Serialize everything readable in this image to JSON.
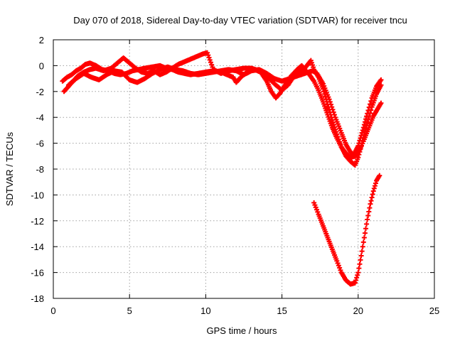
{
  "chart_data": {
    "type": "scatter",
    "title": "Day 070 of 2018, Sidereal Day-to-day VTEC variation (SDTVAR) for receiver tncu",
    "xlabel": "GPS time / hours",
    "ylabel": "SDTVAR / TECUs",
    "xlim": [
      0,
      25
    ],
    "ylim": [
      -18,
      2
    ],
    "xticks": [
      0,
      5,
      10,
      15,
      20,
      25
    ],
    "yticks": [
      2,
      0,
      -2,
      -4,
      -6,
      -8,
      -10,
      -12,
      -14,
      -16,
      -18
    ],
    "grid": true,
    "marker": "+",
    "color": "#ff0000",
    "series": [
      {
        "name": "track-1",
        "points": [
          [
            0.6,
            -1.2
          ],
          [
            0.9,
            -0.9
          ],
          [
            1.2,
            -0.7
          ],
          [
            1.5,
            -0.4
          ],
          [
            1.8,
            -0.2
          ],
          [
            2.1,
            0.1
          ],
          [
            2.4,
            0.2
          ],
          [
            2.8,
            0.0
          ],
          [
            3.2,
            -0.3
          ],
          [
            3.6,
            -0.4
          ],
          [
            4.0,
            -0.6
          ],
          [
            4.4,
            -0.7
          ],
          [
            4.8,
            -0.6
          ],
          [
            5.2,
            -0.4
          ],
          [
            5.6,
            -0.3
          ],
          [
            6.0,
            -0.2
          ],
          [
            6.5,
            -0.1
          ],
          [
            7.0,
            0.0
          ],
          [
            7.4,
            -0.2
          ],
          [
            7.8,
            -0.3
          ],
          [
            8.2,
            -0.5
          ],
          [
            8.6,
            -0.6
          ],
          [
            9.0,
            -0.7
          ],
          [
            9.5,
            -0.6
          ],
          [
            10.0,
            -0.5
          ],
          [
            10.5,
            -0.4
          ],
          [
            11.0,
            -0.5
          ],
          [
            11.4,
            -0.7
          ],
          [
            11.8,
            -0.9
          ],
          [
            12.0,
            -1.3
          ],
          [
            12.3,
            -0.9
          ],
          [
            12.6,
            -0.6
          ],
          [
            12.9,
            -0.4
          ],
          [
            13.2,
            -0.3
          ],
          [
            13.6,
            -0.5
          ],
          [
            14.0,
            -1.2
          ],
          [
            14.3,
            -2.0
          ],
          [
            14.6,
            -2.5
          ],
          [
            14.9,
            -2.1
          ],
          [
            15.2,
            -1.5
          ],
          [
            15.6,
            -0.8
          ],
          [
            16.0,
            -0.3
          ],
          [
            16.3,
            0.0
          ],
          [
            16.5,
            -0.3
          ],
          [
            16.8,
            -0.7
          ],
          [
            17.1,
            -1.2
          ],
          [
            17.4,
            -1.9
          ],
          [
            17.7,
            -2.8
          ],
          [
            18.0,
            -3.8
          ],
          [
            18.3,
            -4.8
          ],
          [
            18.6,
            -5.6
          ],
          [
            18.9,
            -6.3
          ],
          [
            19.2,
            -6.8
          ],
          [
            19.5,
            -7.1
          ],
          [
            19.8,
            -7.0
          ],
          [
            20.1,
            -6.5
          ],
          [
            20.4,
            -5.7
          ],
          [
            20.7,
            -4.8
          ],
          [
            21.0,
            -3.9
          ],
          [
            21.3,
            -3.3
          ],
          [
            21.5,
            -2.9
          ]
        ]
      },
      {
        "name": "track-2",
        "points": [
          [
            0.7,
            -2.0
          ],
          [
            1.0,
            -1.6
          ],
          [
            1.3,
            -1.2
          ],
          [
            1.6,
            -0.8
          ],
          [
            2.0,
            -0.5
          ],
          [
            2.4,
            -0.3
          ],
          [
            2.8,
            -0.2
          ],
          [
            3.3,
            -0.4
          ],
          [
            3.8,
            -0.2
          ],
          [
            4.2,
            0.2
          ],
          [
            4.6,
            0.6
          ],
          [
            5.0,
            0.2
          ],
          [
            5.4,
            -0.2
          ],
          [
            5.8,
            -0.5
          ],
          [
            6.2,
            -0.6
          ],
          [
            6.6,
            -0.4
          ],
          [
            7.0,
            -0.7
          ],
          [
            7.4,
            -0.5
          ],
          [
            7.8,
            -0.2
          ],
          [
            8.2,
            0.1
          ],
          [
            8.6,
            0.3
          ],
          [
            9.0,
            0.5
          ],
          [
            9.4,
            0.7
          ],
          [
            9.8,
            0.9
          ],
          [
            10.1,
            1.0
          ],
          [
            10.5,
            -0.3
          ],
          [
            11.0,
            -0.6
          ],
          [
            11.5,
            -0.4
          ],
          [
            12.0,
            -0.3
          ],
          [
            12.5,
            -0.2
          ],
          [
            13.0,
            -0.2
          ],
          [
            13.5,
            -0.4
          ],
          [
            14.0,
            -0.8
          ],
          [
            14.5,
            -1.4
          ],
          [
            15.0,
            -1.9
          ],
          [
            15.4,
            -1.5
          ],
          [
            15.8,
            -0.8
          ],
          [
            16.2,
            -0.4
          ],
          [
            16.5,
            -0.2
          ],
          [
            16.9,
            0.4
          ],
          [
            17.1,
            -0.3
          ],
          [
            17.4,
            -0.9
          ],
          [
            17.7,
            -1.8
          ],
          [
            18.0,
            -3.0
          ],
          [
            18.3,
            -4.2
          ],
          [
            18.6,
            -5.3
          ],
          [
            18.9,
            -6.3
          ],
          [
            19.2,
            -7.0
          ],
          [
            19.5,
            -7.4
          ],
          [
            19.8,
            -7.7
          ],
          [
            20.0,
            -7.1
          ],
          [
            20.3,
            -5.8
          ],
          [
            20.6,
            -4.4
          ],
          [
            20.9,
            -3.2
          ],
          [
            21.2,
            -2.2
          ],
          [
            21.5,
            -1.5
          ]
        ]
      },
      {
        "name": "track-3",
        "points": [
          [
            1.0,
            -1.5
          ],
          [
            1.5,
            -1.0
          ],
          [
            2.0,
            -0.6
          ],
          [
            2.5,
            -0.9
          ],
          [
            3.0,
            -1.1
          ],
          [
            3.5,
            -0.7
          ],
          [
            4.0,
            -0.4
          ],
          [
            4.5,
            -0.5
          ],
          [
            5.0,
            -1.1
          ],
          [
            5.5,
            -1.3
          ],
          [
            6.0,
            -1.0
          ],
          [
            6.5,
            -0.6
          ],
          [
            7.0,
            -0.3
          ],
          [
            7.5,
            -0.1
          ],
          [
            8.0,
            -0.3
          ],
          [
            8.5,
            -0.4
          ],
          [
            9.0,
            -0.6
          ],
          [
            9.5,
            -0.7
          ],
          [
            10.0,
            -0.6
          ],
          [
            10.5,
            -0.5
          ],
          [
            11.0,
            -0.4
          ],
          [
            11.5,
            -0.3
          ],
          [
            12.0,
            -0.4
          ],
          [
            12.5,
            -0.7
          ],
          [
            13.0,
            -0.4
          ],
          [
            13.5,
            -0.3
          ],
          [
            14.0,
            -0.6
          ],
          [
            14.5,
            -1.0
          ],
          [
            15.0,
            -1.2
          ],
          [
            15.5,
            -1.0
          ],
          [
            16.0,
            -0.8
          ],
          [
            16.5,
            -0.6
          ],
          [
            17.0,
            -0.4
          ],
          [
            17.3,
            -0.6
          ],
          [
            17.7,
            -1.4
          ],
          [
            18.1,
            -2.6
          ],
          [
            18.5,
            -4.0
          ],
          [
            18.9,
            -5.2
          ],
          [
            19.2,
            -6.1
          ],
          [
            19.5,
            -6.7
          ],
          [
            19.7,
            -6.9
          ],
          [
            20.0,
            -6.2
          ],
          [
            20.3,
            -5.0
          ],
          [
            20.6,
            -3.7
          ],
          [
            20.9,
            -2.5
          ],
          [
            21.2,
            -1.6
          ],
          [
            21.5,
            -1.1
          ]
        ]
      },
      {
        "name": "track-4",
        "points": [
          [
            17.1,
            -10.6
          ],
          [
            17.4,
            -11.5
          ],
          [
            17.7,
            -12.4
          ],
          [
            18.0,
            -13.3
          ],
          [
            18.3,
            -14.2
          ],
          [
            18.6,
            -15.1
          ],
          [
            18.9,
            -16.0
          ],
          [
            19.2,
            -16.6
          ],
          [
            19.5,
            -16.9
          ],
          [
            19.8,
            -16.8
          ],
          [
            20.0,
            -16.0
          ],
          [
            20.2,
            -14.7
          ],
          [
            20.4,
            -13.3
          ],
          [
            20.6,
            -11.9
          ],
          [
            20.8,
            -10.7
          ],
          [
            21.0,
            -9.7
          ],
          [
            21.2,
            -8.9
          ],
          [
            21.4,
            -8.5
          ]
        ]
      }
    ]
  }
}
